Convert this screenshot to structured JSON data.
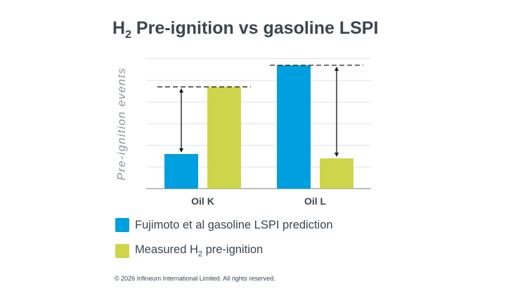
{
  "chart_data": {
    "type": "bar",
    "title_main": "H",
    "title_sub": "2",
    "title_rest": " Pre-ignition vs gasoline LSPI",
    "title": "H2 Pre-ignition vs gasoline LSPI",
    "xlabel": "",
    "ylabel": "Pre-ignition events",
    "ylim": [
      0,
      6
    ],
    "grid": true,
    "y_ticks_labeled": false,
    "categories": [
      "Oil K",
      "Oil L"
    ],
    "series": [
      {
        "name": "Fujimoto et al gasoline LSPI prediction",
        "color": "#009fdf",
        "values": [
          1.6,
          5.7
        ]
      },
      {
        "name": "Measured H2 pre-ignition",
        "name_main": "Measured H",
        "name_sub": "2",
        "name_rest": " pre-ignition",
        "color": "#cfd54a",
        "values": [
          4.7,
          1.4
        ]
      }
    ],
    "legend_placement": "bottom-left"
  },
  "footer": {
    "copyright": "© 2026 Infineum International Limited. All rights reserved."
  }
}
